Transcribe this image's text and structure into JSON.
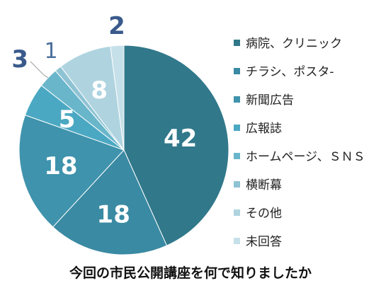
{
  "chart_data": {
    "type": "pie",
    "title": "今回の市民公開講座を何で知りましたか",
    "categories": [
      "病院、クリニック",
      "チラシ、ポスタ-",
      "新聞広告",
      "広報誌",
      "ホームページ、ＳＮＳ",
      "横断幕",
      "その他",
      "未回答"
    ],
    "values": [
      42,
      18,
      18,
      5,
      3,
      1,
      8,
      2
    ],
    "colors": [
      "#31788b",
      "#3a8aa3",
      "#3f93ac",
      "#4ba8c2",
      "#69b6cb",
      "#8fc3d4",
      "#afd4e0",
      "#c6e0e9"
    ],
    "legend_position": "right"
  }
}
